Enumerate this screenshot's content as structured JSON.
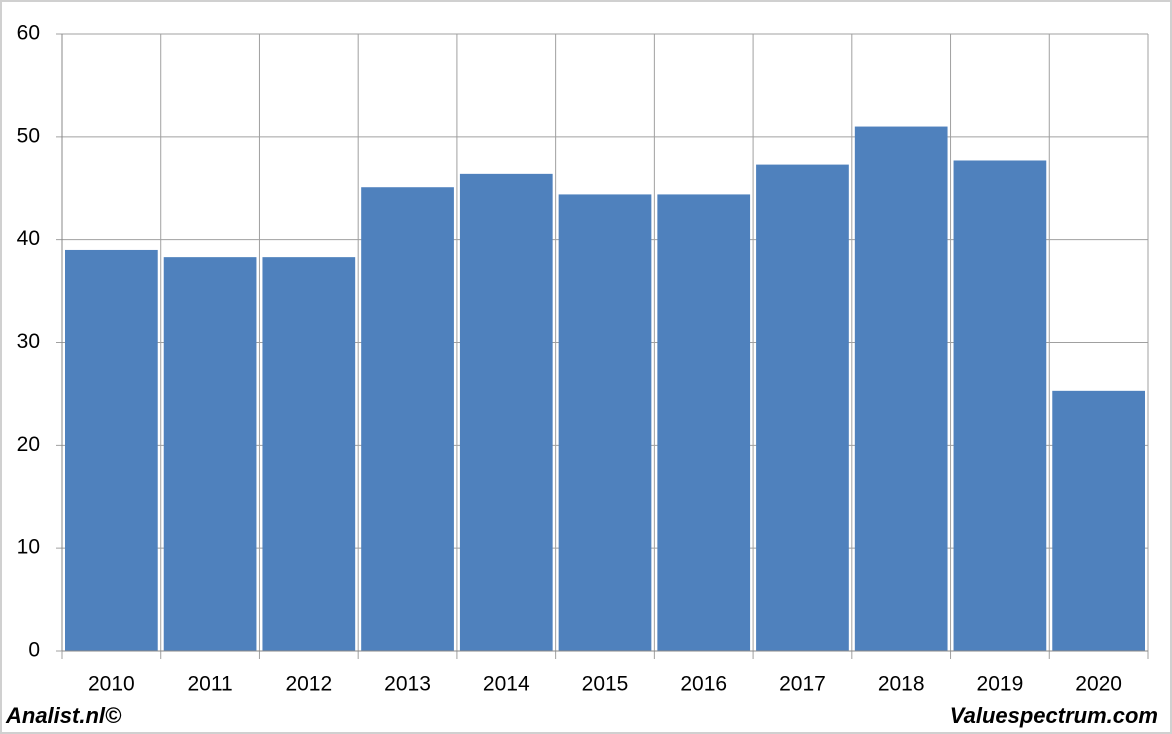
{
  "chart_data": {
    "type": "bar",
    "categories": [
      "2010",
      "2011",
      "2012",
      "2013",
      "2014",
      "2015",
      "2016",
      "2017",
      "2018",
      "2019",
      "2020"
    ],
    "values": [
      39.0,
      38.3,
      38.3,
      45.1,
      46.4,
      44.4,
      44.4,
      47.3,
      51.0,
      47.7,
      25.3
    ],
    "color": "#4f81bd",
    "ylim": [
      0,
      60
    ],
    "yticks": [
      0,
      10,
      20,
      30,
      40,
      50,
      60
    ],
    "grid": true
  },
  "footer": {
    "left": "Analist.nl©",
    "right": "Valuespectrum.com"
  }
}
